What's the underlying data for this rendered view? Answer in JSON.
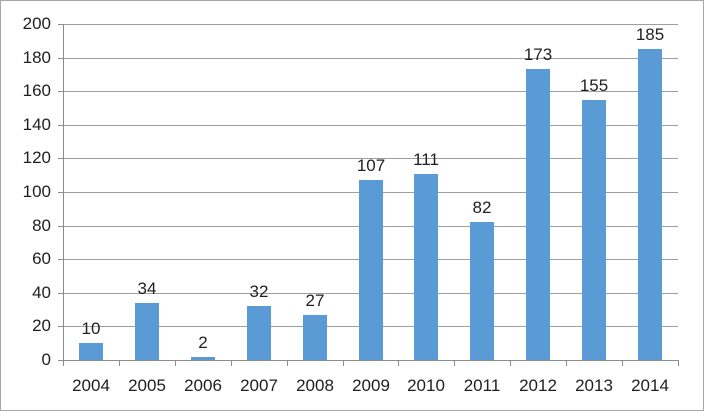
{
  "chart_data": {
    "type": "bar",
    "title": "",
    "categories": [
      "2004",
      "2005",
      "2006",
      "2007",
      "2008",
      "2009",
      "2010",
      "2011",
      "2012",
      "2013",
      "2014"
    ],
    "values": [
      10,
      34,
      2,
      32,
      27,
      107,
      111,
      82,
      173,
      155,
      185
    ],
    "xlabel": "",
    "ylabel": "",
    "ylim": [
      0,
      200
    ],
    "yticks": [
      0,
      20,
      40,
      60,
      80,
      100,
      120,
      140,
      160,
      180,
      200
    ],
    "grid": true,
    "legend": "none",
    "data_labels": true,
    "colors": {
      "bar": "#5B9BD5",
      "gridline": "#9E9E9E",
      "axis": "#8C8C8C",
      "text": "#1F1F1F",
      "frame_border": "#A6A6A6",
      "background": "#FFFFFF"
    }
  }
}
